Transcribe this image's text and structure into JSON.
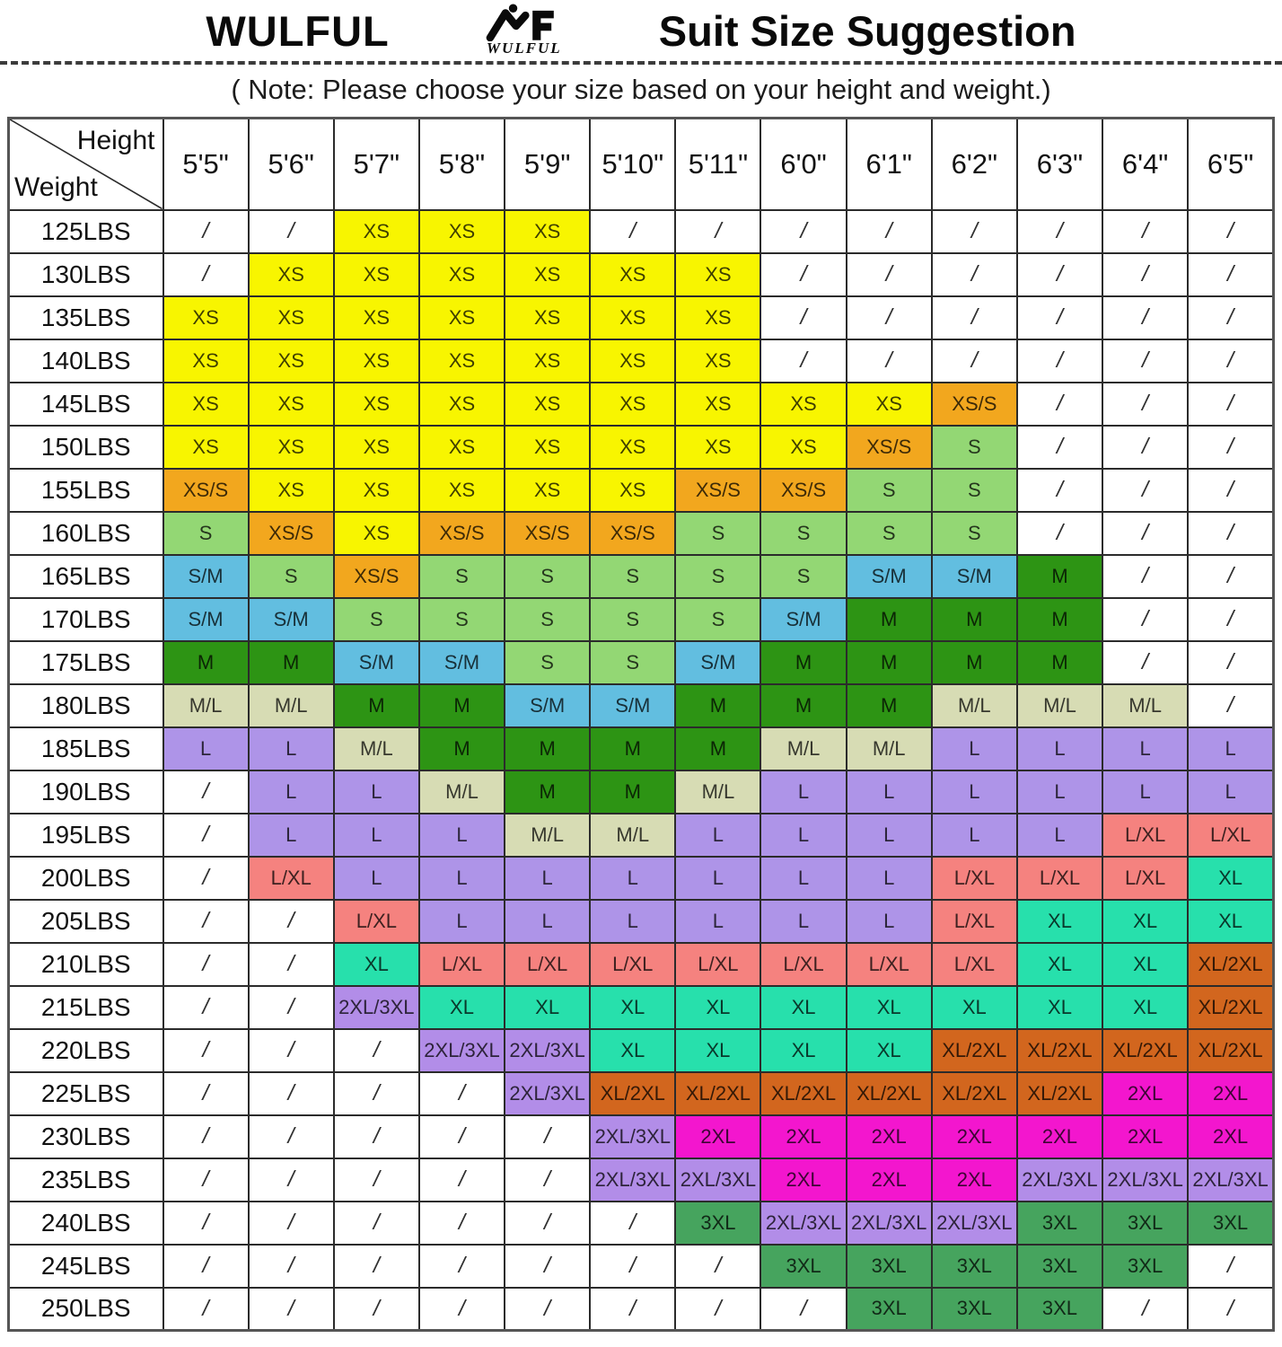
{
  "header": {
    "brand_name": "WULFUL",
    "logo_text": "WULFUL",
    "title": "Suit Size Suggestion",
    "note": "( Note: Please choose your size based on your height and weight.)"
  },
  "table": {
    "corner": {
      "height_label": "Height",
      "weight_label": "Weight"
    },
    "height_columns": [
      "5'5\"",
      "5'6\"",
      "5'7\"",
      "5'8\"",
      "5'9\"",
      "5'10\"",
      "5'11\"",
      "6'0\"",
      "6'1\"",
      "6'2\"",
      "6'3\"",
      "6'4\"",
      "6'5\""
    ],
    "rows": [
      {
        "weight": "125LBS",
        "cells": [
          "/",
          "/",
          "XS",
          "XS",
          "XS",
          "/",
          "/",
          "/",
          "/",
          "/",
          "/",
          "/",
          "/"
        ]
      },
      {
        "weight": "130LBS",
        "cells": [
          "/",
          "XS",
          "XS",
          "XS",
          "XS",
          "XS",
          "XS",
          "/",
          "/",
          "/",
          "/",
          "/",
          "/"
        ]
      },
      {
        "weight": "135LBS",
        "cells": [
          "XS",
          "XS",
          "XS",
          "XS",
          "XS",
          "XS",
          "XS",
          "/",
          "/",
          "/",
          "/",
          "/",
          "/"
        ]
      },
      {
        "weight": "140LBS",
        "cells": [
          "XS",
          "XS",
          "XS",
          "XS",
          "XS",
          "XS",
          "XS",
          "/",
          "/",
          "/",
          "/",
          "/",
          "/"
        ]
      },
      {
        "weight": "145LBS",
        "cells": [
          "XS",
          "XS",
          "XS",
          "XS",
          "XS",
          "XS",
          "XS",
          "XS",
          "XS",
          "XS/S",
          "/",
          "/",
          "/"
        ]
      },
      {
        "weight": "150LBS",
        "cells": [
          "XS",
          "XS",
          "XS",
          "XS",
          "XS",
          "XS",
          "XS",
          "XS",
          "XS/S",
          "S",
          "/",
          "/",
          "/"
        ]
      },
      {
        "weight": "155LBS",
        "cells": [
          "XS/S",
          "XS",
          "XS",
          "XS",
          "XS",
          "XS",
          "XS/S",
          "XS/S",
          "S",
          "S",
          "/",
          "/",
          "/"
        ]
      },
      {
        "weight": "160LBS",
        "cells": [
          "S",
          "XS/S",
          "XS",
          "XS/S",
          "XS/S",
          "XS/S",
          "S",
          "S",
          "S",
          "S",
          "/",
          "/",
          "/"
        ]
      },
      {
        "weight": "165LBS",
        "cells": [
          "S/M",
          "S",
          "XS/S",
          "S",
          "S",
          "S",
          "S",
          "S",
          "S/M",
          "S/M",
          "M",
          "/",
          "/"
        ]
      },
      {
        "weight": "170LBS",
        "cells": [
          "S/M",
          "S/M",
          "S",
          "S",
          "S",
          "S",
          "S",
          "S/M",
          "M",
          "M",
          "M",
          "/",
          "/"
        ]
      },
      {
        "weight": "175LBS",
        "cells": [
          "M",
          "M",
          "S/M",
          "S/M",
          "S",
          "S",
          "S/M",
          "M",
          "M",
          "M",
          "M",
          "/",
          "/"
        ]
      },
      {
        "weight": "180LBS",
        "cells": [
          "M/L",
          "M/L",
          "M",
          "M",
          "S/M",
          "S/M",
          "M",
          "M",
          "M",
          "M/L",
          "M/L",
          "M/L",
          "/"
        ]
      },
      {
        "weight": "185LBS",
        "cells": [
          "L",
          "L",
          "M/L",
          "M",
          "M",
          "M",
          "M",
          "M/L",
          "M/L",
          "L",
          "L",
          "L",
          "L"
        ]
      },
      {
        "weight": "190LBS",
        "cells": [
          "/",
          "L",
          "L",
          "M/L",
          "M",
          "M",
          "M/L",
          "L",
          "L",
          "L",
          "L",
          "L",
          "L"
        ]
      },
      {
        "weight": "195LBS",
        "cells": [
          "/",
          "L",
          "L",
          "L",
          "M/L",
          "M/L",
          "L",
          "L",
          "L",
          "L",
          "L",
          "L/XL",
          "L/XL"
        ]
      },
      {
        "weight": "200LBS",
        "cells": [
          "/",
          "L/XL",
          "L",
          "L",
          "L",
          "L",
          "L",
          "L",
          "L",
          "L/XL",
          "L/XL",
          "L/XL",
          "XL"
        ]
      },
      {
        "weight": "205LBS",
        "cells": [
          "/",
          "/",
          "L/XL",
          "L",
          "L",
          "L",
          "L",
          "L",
          "L",
          "L/XL",
          "XL",
          "XL",
          "XL"
        ]
      },
      {
        "weight": "210LBS",
        "cells": [
          "/",
          "/",
          "XL",
          "L/XL",
          "L/XL",
          "L/XL",
          "L/XL",
          "L/XL",
          "L/XL",
          "L/XL",
          "XL",
          "XL",
          "XL/2XL"
        ]
      },
      {
        "weight": "215LBS",
        "cells": [
          "/",
          "/",
          "2XL/3XL",
          "XL",
          "XL",
          "XL",
          "XL",
          "XL",
          "XL",
          "XL",
          "XL",
          "XL",
          "XL/2XL"
        ]
      },
      {
        "weight": "220LBS",
        "cells": [
          "/",
          "/",
          "/",
          "2XL/3XL",
          "2XL/3XL",
          "XL",
          "XL",
          "XL",
          "XL",
          "XL/2XL",
          "XL/2XL",
          "XL/2XL",
          "XL/2XL"
        ]
      },
      {
        "weight": "225LBS",
        "cells": [
          "/",
          "/",
          "/",
          "/",
          "2XL/3XL",
          "XL/2XL",
          "XL/2XL",
          "XL/2XL",
          "XL/2XL",
          "XL/2XL",
          "XL/2XL",
          "2XL",
          "2XL"
        ]
      },
      {
        "weight": "230LBS",
        "cells": [
          "/",
          "/",
          "/",
          "/",
          "/",
          "2XL/3XL",
          "2XL",
          "2XL",
          "2XL",
          "2XL",
          "2XL",
          "2XL",
          "2XL"
        ]
      },
      {
        "weight": "235LBS",
        "cells": [
          "/",
          "/",
          "/",
          "/",
          "/",
          "2XL/3XL",
          "2XL/3XL",
          "2XL",
          "2XL",
          "2XL",
          "2XL/3XL",
          "2XL/3XL",
          "2XL/3XL"
        ]
      },
      {
        "weight": "240LBS",
        "cells": [
          "/",
          "/",
          "/",
          "/",
          "/",
          "/",
          "3XL",
          "2XL/3XL",
          "2XL/3XL",
          "2XL/3XL",
          "3XL",
          "3XL",
          "3XL"
        ]
      },
      {
        "weight": "245LBS",
        "cells": [
          "/",
          "/",
          "/",
          "/",
          "/",
          "/",
          "/",
          "3XL",
          "3XL",
          "3XL",
          "3XL",
          "3XL",
          "/"
        ]
      },
      {
        "weight": "250LBS",
        "cells": [
          "/",
          "/",
          "/",
          "/",
          "/",
          "/",
          "/",
          "/",
          "3XL",
          "3XL",
          "3XL",
          "/",
          "/"
        ]
      }
    ]
  },
  "size_colors": {
    "XS": "#F8F500",
    "XS/S": "#F2A71E",
    "S": "#93D774",
    "S/M": "#62BEE0",
    "M": "#2D9414",
    "M/L": "#D7DCB4",
    "L": "#AE94E8",
    "L/XL": "#F5827F",
    "XL": "#27E0AC",
    "XL/2XL": "#D2661E",
    "2XL": "#F316CE",
    "2XL/3XL": "#B28DE8",
    "3XL": "#46A45E",
    "/": "#FFFFFF"
  }
}
